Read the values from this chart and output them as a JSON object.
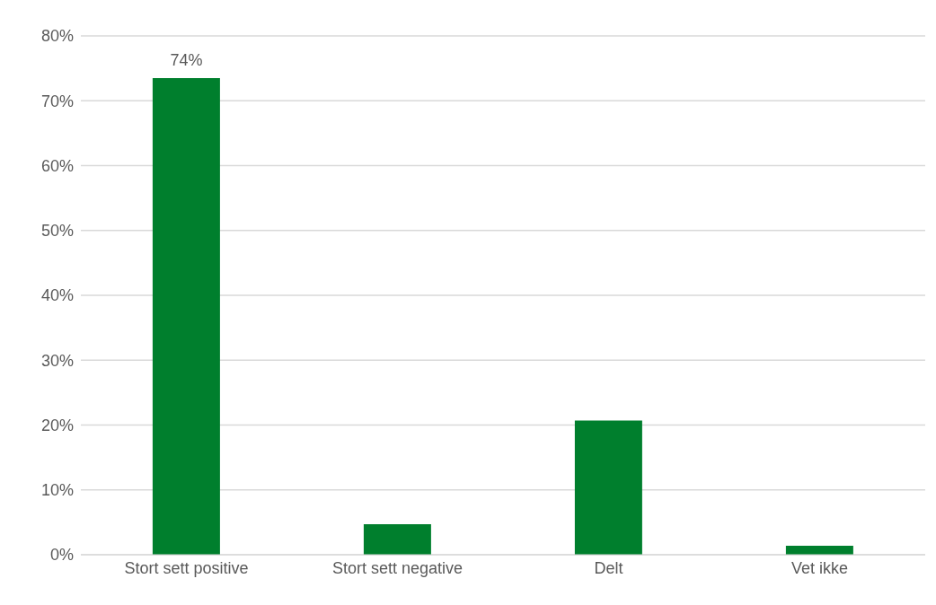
{
  "chart_data": {
    "type": "bar",
    "categories": [
      "Stort sett positive",
      "Stort sett negative",
      "Delt",
      "Vet ikke"
    ],
    "values": [
      73.5,
      4.7,
      20.7,
      1.4
    ],
    "value_labels": [
      "74%",
      null,
      null,
      null
    ],
    "color": "#007f2d",
    "ylim": [
      0,
      80
    ],
    "yticks": [
      {
        "value": 0,
        "label": "0%"
      },
      {
        "value": 10,
        "label": "10%"
      },
      {
        "value": 20,
        "label": "20%"
      },
      {
        "value": 30,
        "label": "30%"
      },
      {
        "value": 40,
        "label": "40%"
      },
      {
        "value": 50,
        "label": "50%"
      },
      {
        "value": 60,
        "label": "60%"
      },
      {
        "value": 70,
        "label": "70%"
      },
      {
        "value": 80,
        "label": "80%"
      }
    ],
    "grid": "y",
    "legend": false
  }
}
